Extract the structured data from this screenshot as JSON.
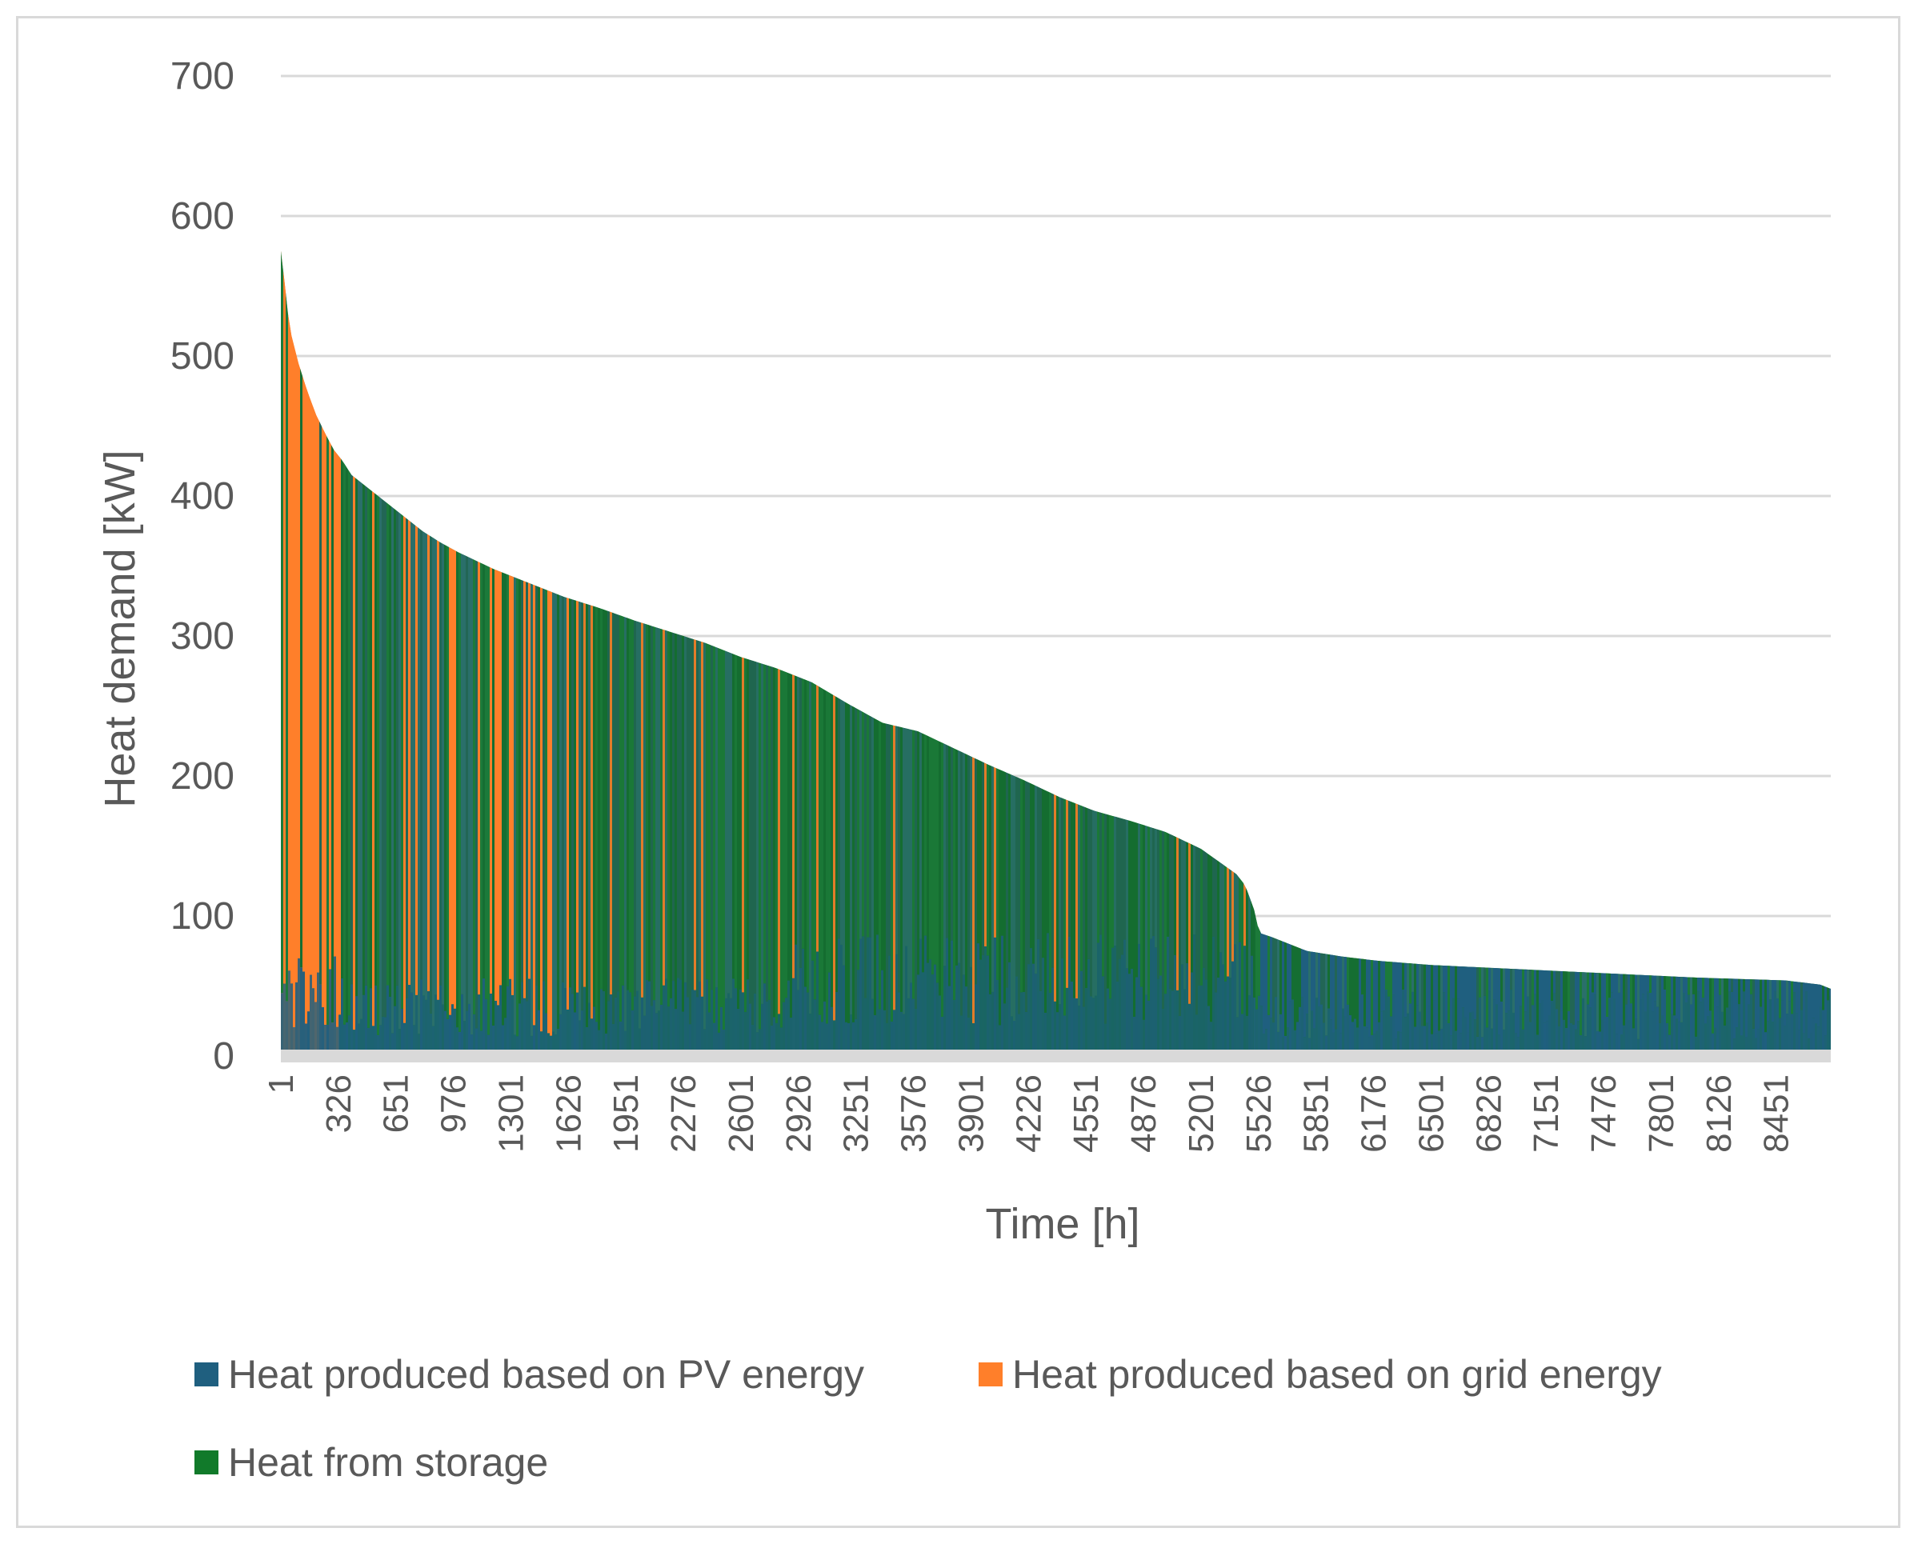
{
  "chart_data": {
    "type": "area",
    "subtype": "stacked load-duration curve",
    "title": "",
    "xlabel": "Time [h]",
    "ylabel": "Heat demand [kW]",
    "ylim": [
      0,
      700
    ],
    "xlim": [
      1,
      8760
    ],
    "yticks": [
      0,
      100,
      200,
      300,
      400,
      500,
      600,
      700
    ],
    "xtick_labels": [
      "1",
      "326",
      "651",
      "976",
      "1301",
      "1626",
      "1951",
      "2276",
      "2601",
      "2926",
      "3251",
      "3576",
      "3901",
      "4226",
      "4551",
      "4876",
      "5201",
      "5526",
      "5851",
      "6176",
      "6501",
      "6826",
      "7151",
      "7476",
      "7801",
      "8126",
      "8451"
    ],
    "grid": true,
    "legend_position": "bottom",
    "series": [
      {
        "name": "Heat produced based on PV energy",
        "color": "#1f5f7f"
      },
      {
        "name": "Heat produced based on grid energy",
        "color": "#ff7f2a"
      },
      {
        "name": "Heat from storage",
        "color": "#117a2a"
      }
    ],
    "total_demand_curve": {
      "x": [
        1,
        20,
        50,
        100,
        150,
        200,
        250,
        300,
        350,
        400,
        500,
        600,
        700,
        800,
        900,
        1000,
        1200,
        1400,
        1600,
        1800,
        2000,
        2200,
        2400,
        2600,
        2800,
        3000,
        3200,
        3400,
        3600,
        3800,
        4000,
        4200,
        4400,
        4600,
        4800,
        5000,
        5200,
        5400,
        5450,
        5500,
        5530,
        5600,
        5800,
        6000,
        6200,
        6500,
        7000,
        7500,
        8000,
        8500,
        8700,
        8760
      ],
      "y": [
        575,
        555,
        520,
        495,
        475,
        458,
        445,
        433,
        425,
        415,
        405,
        395,
        385,
        375,
        367,
        360,
        348,
        338,
        328,
        320,
        311,
        303,
        295,
        285,
        277,
        267,
        252,
        238,
        232,
        220,
        208,
        197,
        185,
        175,
        168,
        160,
        148,
        130,
        122,
        105,
        88,
        85,
        75,
        71,
        68,
        65,
        62,
        59,
        56,
        54,
        51,
        48
      ]
    },
    "composition_by_period": [
      {
        "from": 1,
        "to": 330,
        "pv": 45,
        "grid": 420,
        "storage": 40
      },
      {
        "from": 330,
        "to": 2900,
        "pv": 35,
        "grid": 70,
        "storage": 210
      },
      {
        "from": 2900,
        "to": 5500,
        "pv": 55,
        "grid": 15,
        "storage": 150
      },
      {
        "from": 5500,
        "to": 8760,
        "pv": 30,
        "grid": 0,
        "storage": 30
      }
    ]
  }
}
